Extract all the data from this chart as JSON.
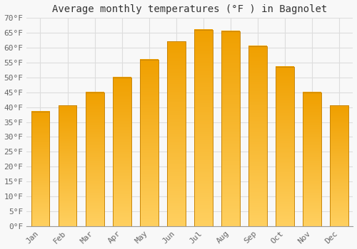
{
  "title": "Average monthly temperatures (°F ) in Bagnolet",
  "months": [
    "Jan",
    "Feb",
    "Mar",
    "Apr",
    "May",
    "Jun",
    "Jul",
    "Aug",
    "Sep",
    "Oct",
    "Nov",
    "Dec"
  ],
  "values": [
    38.5,
    40.5,
    45.0,
    50.0,
    56.0,
    62.0,
    66.0,
    65.5,
    60.5,
    53.5,
    45.0,
    40.5
  ],
  "bar_color_dark": "#F0A000",
  "bar_color_light": "#FFD060",
  "bar_edge_color": "#C8860A",
  "ylim": [
    0,
    70
  ],
  "yticks": [
    0,
    5,
    10,
    15,
    20,
    25,
    30,
    35,
    40,
    45,
    50,
    55,
    60,
    65,
    70
  ],
  "ytick_labels": [
    "0°F",
    "5°F",
    "10°F",
    "15°F",
    "20°F",
    "25°F",
    "30°F",
    "35°F",
    "40°F",
    "45°F",
    "50°F",
    "55°F",
    "60°F",
    "65°F",
    "70°F"
  ],
  "background_color": "#F8F8F8",
  "grid_color": "#DDDDDD",
  "title_fontsize": 10,
  "tick_fontsize": 8,
  "font_family": "monospace",
  "figsize": [
    5.0,
    3.5
  ],
  "dpi": 100
}
